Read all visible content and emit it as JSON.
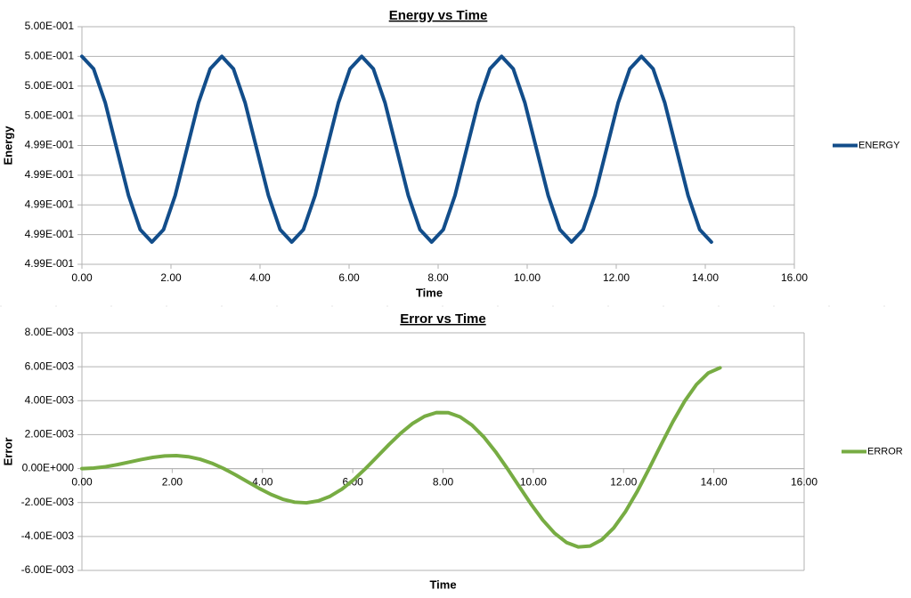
{
  "chart_data": [
    {
      "type": "line",
      "title": "Energy vs Time",
      "x_label": "Time",
      "y_label": "Energy",
      "grid": true,
      "legend": "right",
      "x": [
        0,
        0.262,
        0.524,
        0.785,
        1.047,
        1.309,
        1.571,
        1.833,
        2.094,
        2.356,
        2.618,
        2.88,
        3.142,
        3.403,
        3.665,
        3.927,
        4.189,
        4.451,
        4.712,
        4.974,
        5.236,
        5.498,
        5.76,
        6.021,
        6.283,
        6.545,
        6.807,
        7.069,
        7.33,
        7.592,
        7.854,
        8.116,
        8.378,
        8.639,
        8.901,
        9.163,
        9.425,
        9.687,
        9.948,
        10.21,
        10.472,
        10.734,
        10.996,
        11.257,
        11.519,
        11.781,
        12.043,
        12.305,
        12.566,
        12.828,
        13.09,
        13.352,
        13.614,
        13.875,
        14.137
      ],
      "series": [
        {
          "name": "ENERGY",
          "color": "#124d8a",
          "values": [
            0.5,
            0.499916,
            0.499688,
            0.499375,
            0.499063,
            0.498834,
            0.49875,
            0.498834,
            0.499063,
            0.499375,
            0.499688,
            0.499916,
            0.5,
            0.499916,
            0.499688,
            0.499375,
            0.499063,
            0.498834,
            0.49875,
            0.498834,
            0.499063,
            0.499375,
            0.499688,
            0.499916,
            0.5,
            0.499916,
            0.499688,
            0.499375,
            0.499063,
            0.498834,
            0.49875,
            0.498834,
            0.499063,
            0.499375,
            0.499688,
            0.499916,
            0.5,
            0.499916,
            0.499688,
            0.499375,
            0.499063,
            0.498834,
            0.49875,
            0.498834,
            0.499063,
            0.499375,
            0.499688,
            0.499916,
            0.5,
            0.499916,
            0.499688,
            0.499375,
            0.499063,
            0.498834,
            0.49875
          ]
        }
      ],
      "xlim": [
        0,
        16
      ],
      "xticks": [
        {
          "value": 0,
          "label": "0.00"
        },
        {
          "value": 2,
          "label": "2.00"
        },
        {
          "value": 4,
          "label": "4.00"
        },
        {
          "value": 6,
          "label": "6.00"
        },
        {
          "value": 8,
          "label": "8.00"
        },
        {
          "value": 10,
          "label": "10.00"
        },
        {
          "value": 12,
          "label": "12.00"
        },
        {
          "value": 14,
          "label": "14.00"
        },
        {
          "value": 16,
          "label": "16.00"
        }
      ],
      "ylim": [
        0.4986,
        0.5002
      ],
      "yticks": [
        {
          "value": 0.4986,
          "label": "4.99E-001"
        },
        {
          "value": 0.4988,
          "label": "4.99E-001"
        },
        {
          "value": 0.499,
          "label": "4.99E-001"
        },
        {
          "value": 0.4992,
          "label": "4.99E-001"
        },
        {
          "value": 0.4994,
          "label": "4.99E-001"
        },
        {
          "value": 0.4996,
          "label": "5.00E-001"
        },
        {
          "value": 0.4998,
          "label": "5.00E-001"
        },
        {
          "value": 0.5,
          "label": "5.00E-001"
        },
        {
          "value": 0.5002,
          "label": "5.00E-001"
        }
      ]
    },
    {
      "type": "line",
      "title": "Error vs Time",
      "x_label": "Time",
      "y_label": "Error",
      "grid": true,
      "legend": "right",
      "x": [
        0,
        0.262,
        0.524,
        0.785,
        1.047,
        1.309,
        1.571,
        1.833,
        2.094,
        2.356,
        2.618,
        2.88,
        3.142,
        3.403,
        3.665,
        3.927,
        4.189,
        4.451,
        4.712,
        4.974,
        5.236,
        5.498,
        5.76,
        6.021,
        6.283,
        6.545,
        6.807,
        7.069,
        7.33,
        7.592,
        7.854,
        8.116,
        8.378,
        8.639,
        8.901,
        9.163,
        9.425,
        9.687,
        9.948,
        10.21,
        10.472,
        10.734,
        10.996,
        11.257,
        11.519,
        11.781,
        12.043,
        12.305,
        12.566,
        12.828,
        13.09,
        13.352,
        13.614,
        13.875,
        14.137
      ],
      "series": [
        {
          "name": "ERROR",
          "color": "#77ac43",
          "values": [
            0,
            2.8e-05,
            0.00011,
            0.000233,
            0.000381,
            0.000531,
            0.00066,
            0.000744,
            0.000762,
            0.0007,
            0.00055,
            0.000313,
            0,
            -0.00037,
            -0.00077,
            -0.001166,
            -0.001524,
            -0.001806,
            -0.001979,
            -0.002018,
            -0.001904,
            -0.001633,
            -0.00121,
            -0.000654,
            0,
            0.000711,
            0.001429,
            0.002099,
            0.002666,
            0.00308,
            0.003299,
            0.003293,
            0.003047,
            0.002566,
            0.001869,
            0.000996,
            0,
            -0.001053,
            -0.002089,
            -0.003032,
            -0.003809,
            -0.004354,
            -0.004618,
            -0.004567,
            -0.00419,
            -0.003499,
            -0.002529,
            -0.001337,
            0,
            0.001394,
            0.002749,
            0.003965,
            0.004952,
            0.005629,
            0.005938
          ]
        }
      ],
      "xlim": [
        0,
        16
      ],
      "xticks": [
        {
          "value": 0,
          "label": "0.00"
        },
        {
          "value": 2,
          "label": "2.00"
        },
        {
          "value": 4,
          "label": "4.00"
        },
        {
          "value": 6,
          "label": "6.00"
        },
        {
          "value": 8,
          "label": "8.00"
        },
        {
          "value": 10,
          "label": "10.00"
        },
        {
          "value": 12,
          "label": "12.00"
        },
        {
          "value": 14,
          "label": "14.00"
        },
        {
          "value": 16,
          "label": "16.00"
        }
      ],
      "ylim": [
        -0.006,
        0.008
      ],
      "yticks": [
        {
          "value": -0.006,
          "label": "-6.00E-003"
        },
        {
          "value": -0.004,
          "label": "-4.00E-003"
        },
        {
          "value": -0.002,
          "label": "-2.00E-003"
        },
        {
          "value": 0,
          "label": "0.00E+000"
        },
        {
          "value": 0.002,
          "label": "2.00E-003"
        },
        {
          "value": 0.004,
          "label": "4.00E-003"
        },
        {
          "value": 0.006,
          "label": "6.00E-003"
        },
        {
          "value": 0.008,
          "label": "8.00E-003"
        }
      ]
    }
  ]
}
